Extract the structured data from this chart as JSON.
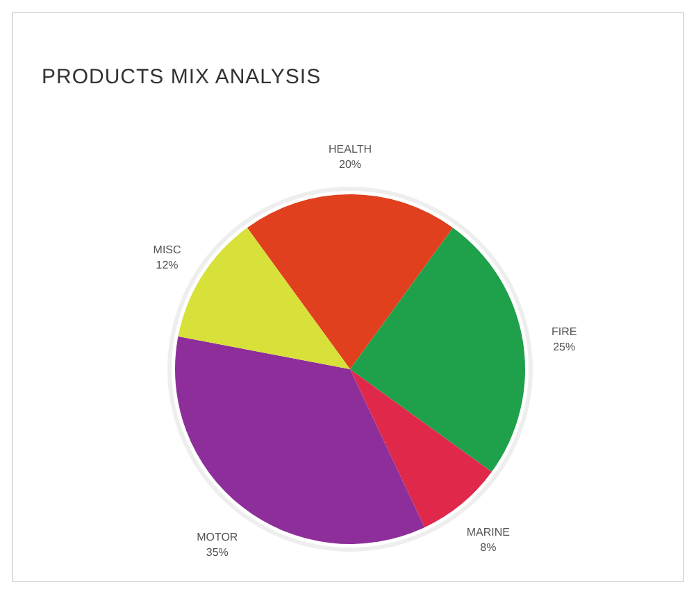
{
  "chart_data": {
    "type": "pie",
    "title": "PRODUCTS MIX ANALYSIS",
    "categories": [
      "HEALTH",
      "FIRE",
      "MARINE",
      "MOTOR",
      "MISC"
    ],
    "values": [
      20,
      25,
      8,
      35,
      12
    ],
    "colors": [
      "#e0401e",
      "#1fa04a",
      "#e0284a",
      "#8e2e9a",
      "#d8e03a"
    ],
    "value_labels": [
      "20%",
      "25%",
      "8%",
      "35%",
      "12%"
    ]
  }
}
